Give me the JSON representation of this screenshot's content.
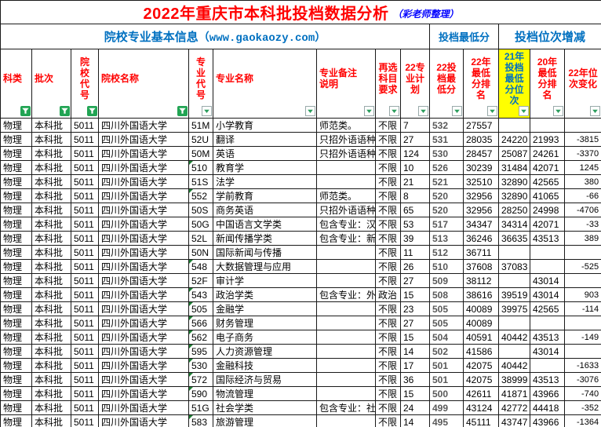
{
  "title": {
    "main": "2022年重庆市本科批投档数据分析",
    "credit": "（彩老师整理）"
  },
  "subtitle": {
    "info_label": "院校专业基本信息",
    "url": "（www.gaokaozy.com）",
    "min_score_label": "投档最低分",
    "rank_change_label": "投档位次增减"
  },
  "colors": {
    "title_red": "#FF0000",
    "header_red": "#FF0000",
    "accent_blue": "#0070C0",
    "credit_blue": "#0000FF",
    "highlight_yellow": "#FFFF00",
    "filter_green": "#21A453",
    "triangle_green": "#1E7E34",
    "score_gray": "#595959"
  },
  "columns": [
    {
      "label": "科类",
      "filter": "funnel"
    },
    {
      "label": "批次",
      "filter": "funnel"
    },
    {
      "label": "院\n校\n代\n号",
      "filter": "funnel"
    },
    {
      "label": "院校名称",
      "filter": "funnel"
    },
    {
      "label": "专\n业\n代\n号",
      "filter": "arrow"
    },
    {
      "label": "专业名称",
      "filter": "arrow"
    },
    {
      "label": "专业备注\n说明",
      "filter": "arrow"
    },
    {
      "label": "再选\n科目\n要求",
      "filter": "arrow"
    },
    {
      "label": "22专\n业计\n划",
      "filter": "arrow"
    },
    {
      "label": "22投\n档最\n低分",
      "filter": "arrow"
    },
    {
      "label": "22年\n最低\n分排\n名",
      "filter": "arrow"
    },
    {
      "label": "21年\n投档\n最低\n分位\n次",
      "filter": "arrow",
      "highlight": true
    },
    {
      "label": "20年\n最低\n分排\n名",
      "filter": "arrow"
    },
    {
      "label": "22年位\n次变化",
      "filter": "arrow"
    }
  ],
  "rows": [
    {
      "tri": false,
      "c": [
        "物理",
        "本科批",
        "5011",
        "四川外国语大学",
        "51M",
        "小学教育",
        "师范类。",
        "不限",
        "7",
        "532",
        "27557",
        "",
        "",
        ""
      ]
    },
    {
      "tri": false,
      "c": [
        "物理",
        "本科批",
        "5011",
        "四川外国语大学",
        "52U",
        "翻译",
        "只招外语语种",
        "不限",
        "27",
        "531",
        "28035",
        "24220",
        "21993",
        "-3815"
      ]
    },
    {
      "tri": false,
      "c": [
        "物理",
        "本科批",
        "5011",
        "四川外国语大学",
        "50M",
        "英语",
        "只招外语语种",
        "不限",
        "124",
        "530",
        "28457",
        "25087",
        "24261",
        "-3370"
      ]
    },
    {
      "tri": true,
      "c": [
        "物理",
        "本科批",
        "5011",
        "四川外国语大学",
        "510",
        "教育学",
        "",
        "不限",
        "10",
        "526",
        "30239",
        "31484",
        "42071",
        "1245"
      ]
    },
    {
      "tri": false,
      "c": [
        "物理",
        "本科批",
        "5011",
        "四川外国语大学",
        "51S",
        "法学",
        "",
        "不限",
        "21",
        "521",
        "32510",
        "32890",
        "42565",
        "380"
      ]
    },
    {
      "tri": true,
      "c": [
        "物理",
        "本科批",
        "5011",
        "四川外国语大学",
        "552",
        "学前教育",
        "师范类。",
        "不限",
        "8",
        "520",
        "32956",
        "32890",
        "41065",
        "-66"
      ]
    },
    {
      "tri": false,
      "c": [
        "物理",
        "本科批",
        "5011",
        "四川外国语大学",
        "50S",
        "商务英语",
        "只招外语语种",
        "不限",
        "65",
        "520",
        "32956",
        "28250",
        "24998",
        "-4706"
      ]
    },
    {
      "tri": false,
      "c": [
        "物理",
        "本科批",
        "5011",
        "四川外国语大学",
        "50G",
        "中国语言文学类",
        "包含专业：汉",
        "不限",
        "53",
        "517",
        "34347",
        "34314",
        "42071",
        "-33"
      ]
    },
    {
      "tri": false,
      "c": [
        "物理",
        "本科批",
        "5011",
        "四川外国语大学",
        "52L",
        "新闻传播学类",
        "包含专业：新",
        "不限",
        "39",
        "513",
        "36246",
        "36635",
        "43513",
        "389"
      ]
    },
    {
      "tri": false,
      "c": [
        "物理",
        "本科批",
        "5011",
        "四川外国语大学",
        "50N",
        "国际新闻与传播",
        "",
        "不限",
        "11",
        "512",
        "36711",
        "",
        "",
        ""
      ]
    },
    {
      "tri": true,
      "c": [
        "物理",
        "本科批",
        "5011",
        "四川外国语大学",
        "548",
        "大数据管理与应用",
        "",
        "不限",
        "26",
        "510",
        "37608",
        "37083",
        "",
        "-525"
      ]
    },
    {
      "tri": false,
      "c": [
        "物理",
        "本科批",
        "5011",
        "四川外国语大学",
        "52F",
        "审计学",
        "",
        "不限",
        "27",
        "509",
        "38112",
        "",
        "43014",
        ""
      ]
    },
    {
      "tri": true,
      "c": [
        "物理",
        "本科批",
        "5011",
        "四川外国语大学",
        "543",
        "政治学类",
        "包含专业：外",
        "政治",
        "15",
        "508",
        "38616",
        "39519",
        "43014",
        "903"
      ]
    },
    {
      "tri": true,
      "c": [
        "物理",
        "本科批",
        "5011",
        "四川外国语大学",
        "505",
        "金融学",
        "",
        "不限",
        "23",
        "505",
        "40089",
        "39975",
        "42565",
        "-114"
      ]
    },
    {
      "tri": true,
      "c": [
        "物理",
        "本科批",
        "5011",
        "四川外国语大学",
        "566",
        "财务管理",
        "",
        "不限",
        "27",
        "505",
        "40089",
        "",
        "",
        ""
      ]
    },
    {
      "tri": true,
      "c": [
        "物理",
        "本科批",
        "5011",
        "四川外国语大学",
        "562",
        "电子商务",
        "",
        "不限",
        "15",
        "504",
        "40591",
        "40442",
        "43513",
        "-149"
      ]
    },
    {
      "tri": true,
      "c": [
        "物理",
        "本科批",
        "5011",
        "四川外国语大学",
        "595",
        "人力资源管理",
        "",
        "不限",
        "14",
        "502",
        "41586",
        "",
        "43014",
        ""
      ]
    },
    {
      "tri": true,
      "c": [
        "物理",
        "本科批",
        "5011",
        "四川外国语大学",
        "530",
        "金融科技",
        "",
        "不限",
        "17",
        "501",
        "42075",
        "40442",
        "",
        "-1633"
      ]
    },
    {
      "tri": true,
      "c": [
        "物理",
        "本科批",
        "5011",
        "四川外国语大学",
        "572",
        "国际经济与贸易",
        "",
        "不限",
        "36",
        "501",
        "42075",
        "38999",
        "43513",
        "-3076"
      ]
    },
    {
      "tri": true,
      "c": [
        "物理",
        "本科批",
        "5011",
        "四川外国语大学",
        "590",
        "物流管理",
        "",
        "不限",
        "15",
        "500",
        "42611",
        "41871",
        "43966",
        "-740"
      ]
    },
    {
      "tri": false,
      "c": [
        "物理",
        "本科批",
        "5011",
        "四川外国语大学",
        "51G",
        "社会学类",
        "包含专业：社",
        "不限",
        "24",
        "499",
        "43124",
        "42772",
        "44418",
        "-352"
      ]
    },
    {
      "tri": true,
      "c": [
        "物理",
        "本科批",
        "5011",
        "四川外国语大学",
        "583",
        "旅游管理",
        "",
        "不限",
        "14",
        "495",
        "45111",
        "43747",
        "43966",
        "-1364"
      ]
    }
  ]
}
